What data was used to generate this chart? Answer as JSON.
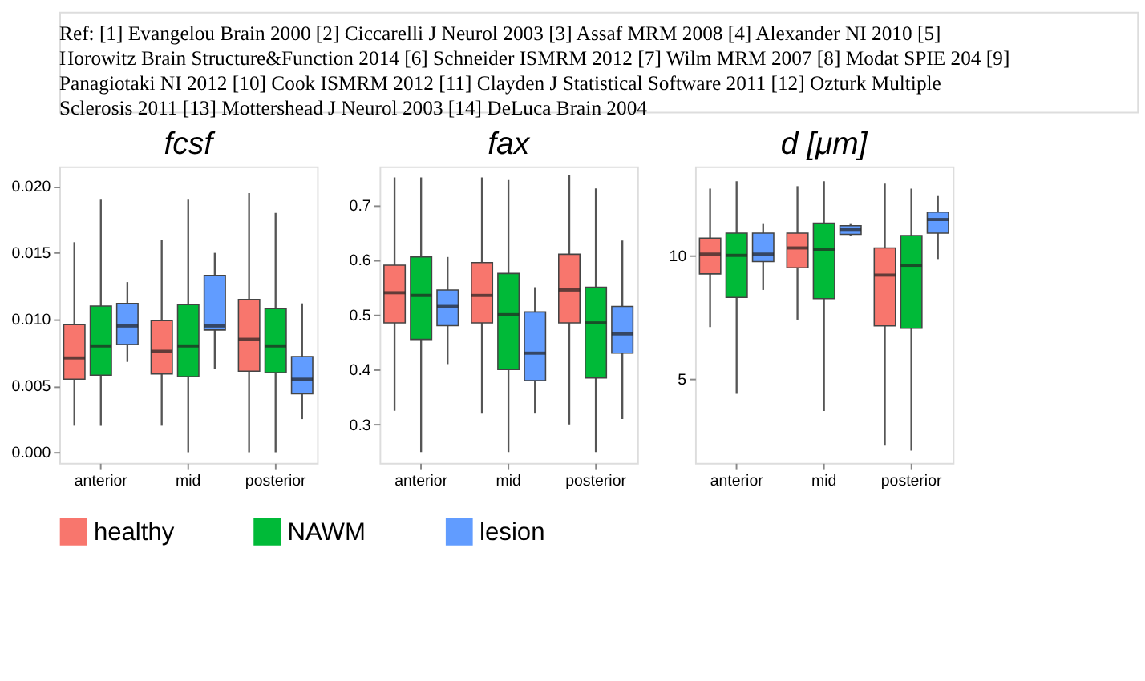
{
  "chart_data": [
    {
      "type": "box",
      "title": "fcsf",
      "annotations": [
        "Ref: [1] Evangelou Brain 2000 [2] Ciccarelli J Neurol 2003 [3] Assaf MRM 2008 [4] Alexander NI 2010 [5] Horowitz Brain Structure&Function 2014 [6] Schneider ISMRM 2012 [7] Wilm MRM 2007 [8] Modat SPIE 204 [9] Panagiotaki NI 2012 [10] Cook ISMRM 2012 [11] Clayden J Statistical Software 2011 [12] Ozturk Multiple Sclerosis 2011 [13] Mottershead J Neurol 2003 [14] DeLuca Brain 2004"
      ],
      "categories": [
        "anterior",
        "mid",
        "posterior"
      ],
      "ylim": [
        -0.0008,
        0.0215
      ],
      "yticks": [
        {
          "value": 0,
          "label": "0.000"
        },
        {
          "value": 0.005,
          "label": "0.005"
        },
        {
          "value": 0.01,
          "label": "0.010"
        },
        {
          "value": 0.015,
          "label": "0.015"
        },
        {
          "value": 0.02,
          "label": "0.020"
        }
      ],
      "grid": false,
      "legend": "bottom",
      "series": [
        {
          "name": "healthy",
          "color": "#f8766d",
          "boxes": [
            {
              "low": 0.002,
              "q1": 0.0055,
              "median": 0.0071,
              "q3": 0.0096,
              "high": 0.0158
            },
            {
              "low": 0.002,
              "q1": 0.0059,
              "median": 0.0076,
              "q3": 0.0099,
              "high": 0.016
            },
            {
              "low": 0.0,
              "q1": 0.0061,
              "median": 0.0085,
              "q3": 0.0115,
              "high": 0.0195
            }
          ]
        },
        {
          "name": "NAWM",
          "color": "#00ba38",
          "boxes": [
            {
              "low": 0.002,
              "q1": 0.0058,
              "median": 0.008,
              "q3": 0.011,
              "high": 0.019
            },
            {
              "low": 0.0,
              "q1": 0.0057,
              "median": 0.008,
              "q3": 0.0111,
              "high": 0.019
            },
            {
              "low": 0.0,
              "q1": 0.006,
              "median": 0.008,
              "q3": 0.0108,
              "high": 0.018
            }
          ]
        },
        {
          "name": "lesion",
          "color": "#619cff",
          "boxes": [
            {
              "low": 0.0068,
              "q1": 0.0081,
              "median": 0.0095,
              "q3": 0.0112,
              "high": 0.0128
            },
            {
              "low": 0.0063,
              "q1": 0.0092,
              "median": 0.0095,
              "q3": 0.0133,
              "high": 0.015
            },
            {
              "low": 0.0025,
              "q1": 0.0044,
              "median": 0.0055,
              "q3": 0.0072,
              "high": 0.0112
            }
          ]
        }
      ]
    },
    {
      "type": "box",
      "title": "fax",
      "categories": [
        "anterior",
        "mid",
        "posterior"
      ],
      "ylim": [
        0.23,
        0.77
      ],
      "yticks": [
        0.3,
        0.4,
        0.5,
        0.6,
        0.7
      ],
      "grid": false,
      "legend": "bottom",
      "series": [
        {
          "name": "healthy",
          "color": "#f8766d",
          "boxes": [
            {
              "low": 0.325,
              "q1": 0.485,
              "median": 0.54,
              "q3": 0.59,
              "high": 0.75
            },
            {
              "low": 0.32,
              "q1": 0.485,
              "median": 0.535,
              "q3": 0.595,
              "high": 0.75
            },
            {
              "low": 0.3,
              "q1": 0.485,
              "median": 0.545,
              "q3": 0.61,
              "high": 0.755
            }
          ]
        },
        {
          "name": "NAWM",
          "color": "#00ba38",
          "boxes": [
            {
              "low": 0.25,
              "q1": 0.455,
              "median": 0.535,
              "q3": 0.605,
              "high": 0.75
            },
            {
              "low": 0.25,
              "q1": 0.4,
              "median": 0.5,
              "q3": 0.575,
              "high": 0.745
            },
            {
              "low": 0.25,
              "q1": 0.385,
              "median": 0.485,
              "q3": 0.55,
              "high": 0.73
            }
          ]
        },
        {
          "name": "lesion",
          "color": "#619cff",
          "boxes": [
            {
              "low": 0.41,
              "q1": 0.48,
              "median": 0.515,
              "q3": 0.545,
              "high": 0.605
            },
            {
              "low": 0.32,
              "q1": 0.38,
              "median": 0.43,
              "q3": 0.505,
              "high": 0.55
            },
            {
              "low": 0.31,
              "q1": 0.43,
              "median": 0.465,
              "q3": 0.515,
              "high": 0.635
            }
          ]
        }
      ]
    },
    {
      "type": "box",
      "title": "d [μm]",
      "categories": [
        "anterior",
        "mid",
        "posterior"
      ],
      "ylim": [
        1.6,
        13.6
      ],
      "yticks": [
        5,
        10
      ],
      "grid": false,
      "legend": "bottom",
      "series": [
        {
          "name": "healthy",
          "color": "#f8766d",
          "boxes": [
            {
              "low": 7.1,
              "q1": 9.25,
              "median": 10.05,
              "q3": 10.7,
              "high": 12.7
            },
            {
              "low": 7.4,
              "q1": 9.5,
              "median": 10.3,
              "q3": 10.9,
              "high": 12.8
            },
            {
              "low": 2.3,
              "q1": 7.15,
              "median": 9.2,
              "q3": 10.3,
              "high": 12.9
            }
          ]
        },
        {
          "name": "NAWM",
          "color": "#00ba38",
          "boxes": [
            {
              "low": 4.4,
              "q1": 8.3,
              "median": 10.0,
              "q3": 10.9,
              "high": 13.0
            },
            {
              "low": 3.7,
              "q1": 8.25,
              "median": 10.25,
              "q3": 11.3,
              "high": 13.0
            },
            {
              "low": 2.1,
              "q1": 7.05,
              "median": 9.6,
              "q3": 10.8,
              "high": 12.7
            }
          ]
        },
        {
          "name": "lesion",
          "color": "#619cff",
          "boxes": [
            {
              "low": 8.6,
              "q1": 9.75,
              "median": 10.05,
              "q3": 10.9,
              "high": 11.3
            },
            {
              "low": 10.8,
              "q1": 10.85,
              "median": 11.05,
              "q3": 11.2,
              "high": 11.3
            },
            {
              "low": 9.85,
              "q1": 10.9,
              "median": 11.45,
              "q3": 11.75,
              "high": 12.4
            }
          ]
        }
      ]
    }
  ]
}
